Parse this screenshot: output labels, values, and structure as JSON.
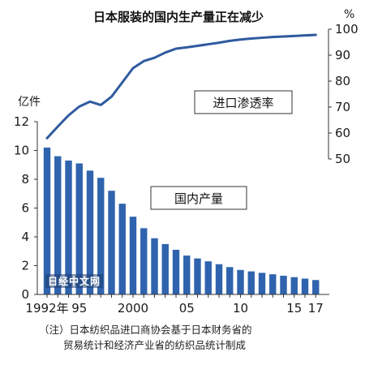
{
  "chart_data": {
    "type": "bar+line",
    "title": "日本服装的国内生产量正在减少",
    "left_axis": {
      "unit": "亿件",
      "ticks": [
        "0",
        "2",
        "4",
        "6",
        "8",
        "10",
        "12"
      ],
      "range": [
        0,
        12
      ]
    },
    "right_axis": {
      "unit": "%",
      "ticks": [
        "50",
        "60",
        "70",
        "80",
        "90",
        "100"
      ],
      "range": [
        50,
        100
      ]
    },
    "x_tick_labels": [
      {
        "year": 1992,
        "label": "1992年"
      },
      {
        "year": 1995,
        "label": "95"
      },
      {
        "year": 2000,
        "label": "2000"
      },
      {
        "year": 2005,
        "label": "05"
      },
      {
        "year": 2010,
        "label": "10"
      },
      {
        "year": 2015,
        "label": "15"
      },
      {
        "year": 2017,
        "label": "17"
      }
    ],
    "years": [
      1992,
      1993,
      1994,
      1995,
      1996,
      1997,
      1998,
      1999,
      2000,
      2001,
      2002,
      2003,
      2004,
      2005,
      2006,
      2007,
      2008,
      2009,
      2010,
      2011,
      2012,
      2013,
      2014,
      2015,
      2016,
      2017
    ],
    "series": [
      {
        "name": "国内产量",
        "kind": "bar",
        "axis": "left",
        "color": "#2f63ad",
        "values": [
          10.2,
          9.6,
          9.3,
          9.1,
          8.6,
          8.1,
          7.2,
          6.3,
          5.4,
          4.6,
          3.9,
          3.5,
          3.1,
          2.7,
          2.5,
          2.3,
          2.1,
          1.9,
          1.7,
          1.6,
          1.5,
          1.4,
          1.3,
          1.2,
          1.1,
          1.0
        ]
      },
      {
        "name": "进口渗透率",
        "kind": "line",
        "axis": "right",
        "color": "#2f5a9e",
        "values": [
          58.0,
          62.5,
          66.8,
          70.2,
          72.1,
          70.8,
          74.0,
          79.5,
          85.0,
          87.7,
          89.0,
          91.0,
          92.5,
          93.0,
          93.6,
          94.2,
          94.8,
          95.5,
          96.0,
          96.4,
          96.7,
          97.0,
          97.2,
          97.4,
          97.6,
          97.8
        ]
      }
    ],
    "grid": false
  },
  "note": {
    "line1": "（注）日本纺织品进口商协会基于日本财务省的",
    "line2": "贸易统计和经济产业省的纺织品统计制成"
  },
  "watermark": "日经中文网"
}
